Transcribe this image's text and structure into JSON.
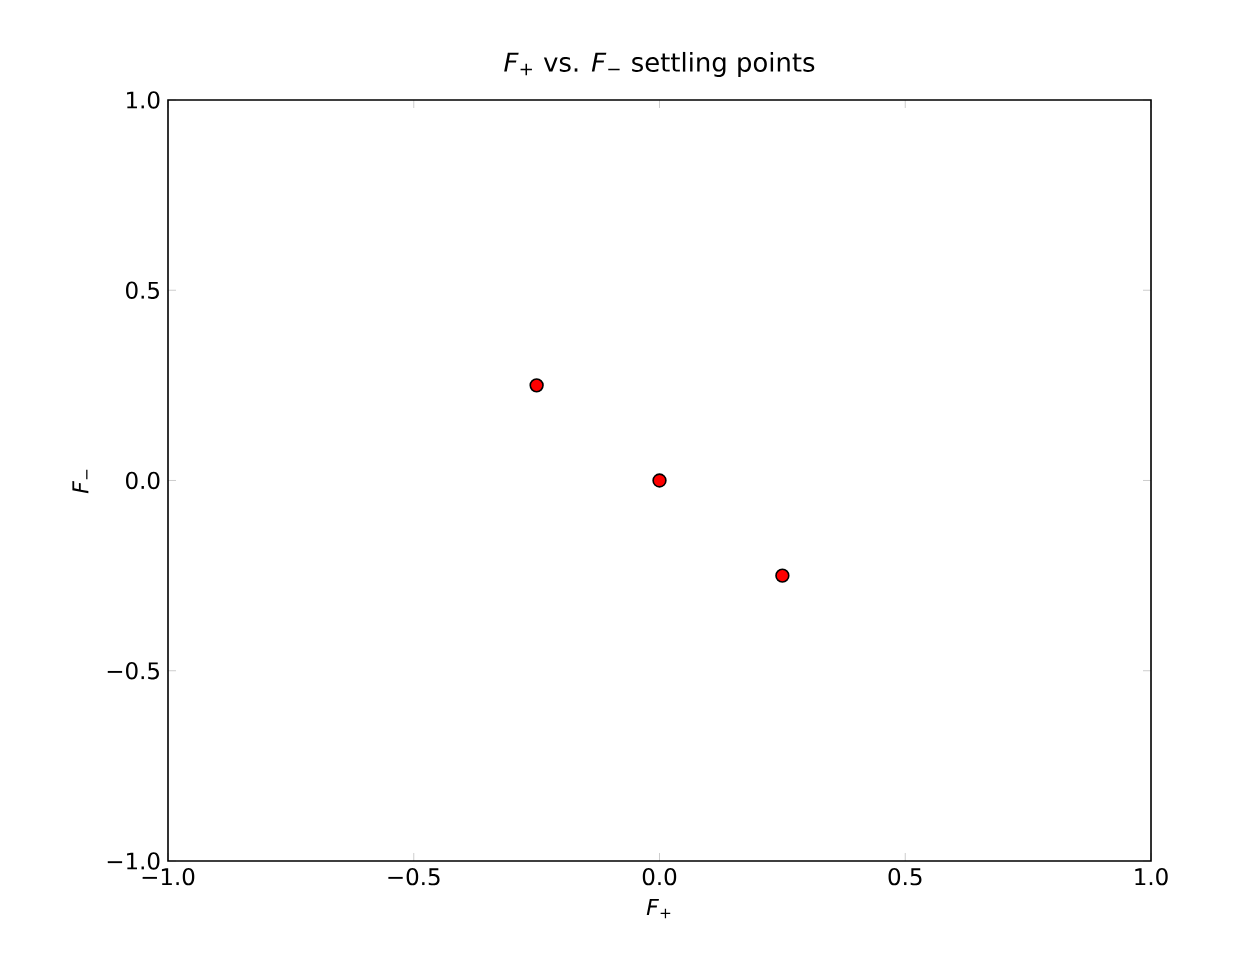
{
  "chart_data": {
    "type": "scatter",
    "title": "*F*$_{+}$ vs. *F*$_{−}$ settling points",
    "xlabel": "*F*$_{+}$",
    "ylabel": "*F*$_{−}$",
    "x": [
      -0.25,
      0,
      0.25
    ],
    "values": [
      0.25,
      0,
      -0.25
    ],
    "color": "#ff0000",
    "marker": "circle",
    "xlim": [
      -1,
      1
    ],
    "ylim": [
      -1,
      1
    ],
    "xticks": [
      {
        "value": -1,
        "label": "−1.0"
      },
      {
        "value": -0.5,
        "label": "−0.5"
      },
      {
        "value": 0,
        "label": "0.0"
      },
      {
        "value": 0.5,
        "label": "0.5"
      },
      {
        "value": 1,
        "label": "1.0"
      }
    ],
    "yticks": [
      {
        "value": -1,
        "label": "−1.0"
      },
      {
        "value": -0.5,
        "label": "−0.5"
      },
      {
        "value": 0,
        "label": "0.0"
      },
      {
        "value": 0.5,
        "label": "0.5"
      },
      {
        "value": 1,
        "label": "1.0"
      }
    ]
  }
}
